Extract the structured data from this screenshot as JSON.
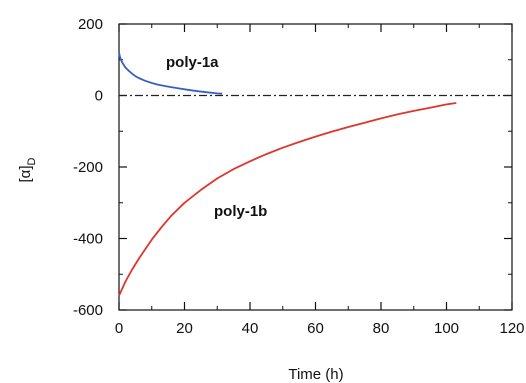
{
  "chart_data": {
    "type": "line",
    "title": "",
    "xlabel": "Time (h)",
    "ylabel_main": "[α]",
    "ylabel_sub": "D",
    "xlim": [
      0,
      120
    ],
    "ylim": [
      -600,
      200
    ],
    "xticks": [
      0,
      20,
      40,
      60,
      80,
      100,
      120
    ],
    "yticks": [
      -600,
      -400,
      -200,
      0,
      200
    ],
    "grid": false,
    "legend": "none",
    "reference_line": {
      "y": 0,
      "style": "dash-dot",
      "x_start": 0,
      "x_end": 120
    },
    "series": [
      {
        "label_prefix": "poly-",
        "label_bold": "1a",
        "color": "#3a5fc4",
        "x": [
          0,
          0.3,
          0.7,
          1,
          1.5,
          2,
          3,
          4,
          5,
          6,
          8,
          10,
          12,
          15,
          18,
          21,
          24,
          27,
          30,
          31.5
        ],
        "y": [
          120,
          108,
          98,
          92,
          85,
          78,
          69,
          61,
          54,
          49,
          41,
          35,
          30,
          25,
          20,
          16,
          12,
          9,
          6,
          5
        ]
      },
      {
        "label_prefix": "poly-",
        "label_bold": "1b",
        "color": "#e0352b",
        "x": [
          0,
          2,
          4,
          6,
          8,
          10,
          13,
          16,
          20,
          25,
          30,
          35,
          40,
          45,
          50,
          55,
          60,
          65,
          70,
          75,
          80,
          85,
          90,
          95,
          100,
          103
        ],
        "y": [
          -560,
          -520,
          -487,
          -457,
          -430,
          -403,
          -368,
          -336,
          -300,
          -264,
          -232,
          -206,
          -184,
          -164,
          -146,
          -130,
          -115,
          -101,
          -88,
          -76,
          -64,
          -53,
          -43,
          -34,
          -25,
          -21
        ]
      }
    ]
  }
}
